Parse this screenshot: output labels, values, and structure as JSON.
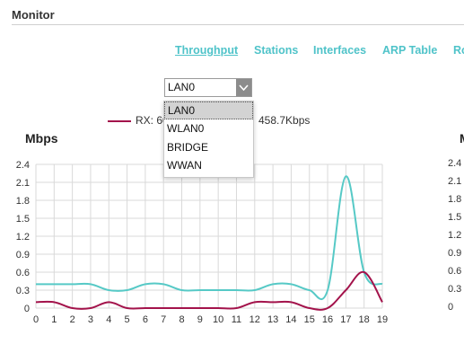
{
  "section": {
    "title": "Monitor"
  },
  "tabs": [
    {
      "label": "Throughput",
      "active": true
    },
    {
      "label": "Stations",
      "active": false
    },
    {
      "label": "Interfaces",
      "active": false
    },
    {
      "label": "ARP Table",
      "active": false
    },
    {
      "label": "Ro",
      "active": false
    }
  ],
  "interface_select": {
    "value": "LAN0",
    "options": [
      "LAN0",
      "WLAN0",
      "BRIDGE",
      "WWAN"
    ]
  },
  "legend": {
    "rx_label": "RX: 60",
    "tx_label": "458.7Kbps"
  },
  "colors": {
    "tab": "#4fc3c9",
    "rx": "#a3134b",
    "tx": "#56c9c6",
    "grid": "#d9d9d9"
  },
  "chart_data": {
    "type": "line",
    "ylabel": "Mbps",
    "x": [
      0,
      1,
      2,
      3,
      4,
      5,
      6,
      7,
      8,
      9,
      10,
      11,
      12,
      13,
      14,
      15,
      16,
      17,
      18,
      19
    ],
    "ylim": [
      0,
      2.4
    ],
    "yticks": [
      "2.4",
      "2.1",
      "1.8",
      "1.5",
      "1.2",
      "0.9",
      "0.6",
      "0.3",
      "0"
    ],
    "grid": true,
    "series": [
      {
        "key": "tx",
        "values": [
          0.4,
          0.4,
          0.4,
          0.4,
          0.3,
          0.3,
          0.4,
          0.4,
          0.3,
          0.3,
          0.3,
          0.3,
          0.3,
          0.4,
          0.4,
          0.3,
          0.3,
          2.2,
          0.6,
          0.4
        ]
      },
      {
        "key": "rx",
        "values": [
          0.1,
          0.1,
          0,
          0,
          0.1,
          0,
          0,
          0,
          0,
          0,
          0,
          0,
          0.1,
          0.1,
          0.1,
          0,
          0,
          0.3,
          0.6,
          0.1
        ]
      }
    ]
  },
  "second_chart": {
    "ylabel": "M",
    "yticks": [
      "2.4",
      "2.1",
      "1.8",
      "1.5",
      "1.2",
      "0.9",
      "0.6",
      "0.3",
      "0"
    ]
  }
}
